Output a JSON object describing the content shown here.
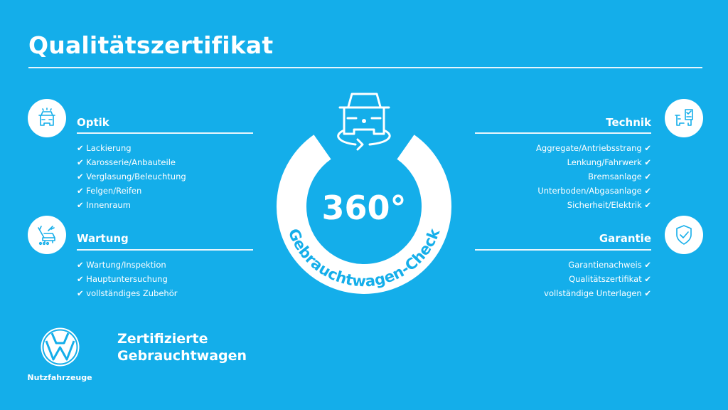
{
  "title": "Qualitätszertifikat",
  "colors": {
    "background": "#14aeea",
    "foreground": "#ffffff"
  },
  "check_mark": "✔",
  "sections": {
    "optik": {
      "title": "Optik",
      "icon": "car-front-lights-icon",
      "items": [
        "Lackierung",
        "Karosserie/Anbauteile",
        "Verglasung/Beleuchtung",
        "Felgen/Reifen",
        "Innenraum"
      ]
    },
    "wartung": {
      "title": "Wartung",
      "icon": "service-tools-icon",
      "items": [
        "Wartung/Inspektion",
        "Hauptuntersuchung",
        "vollständiges Zubehör"
      ]
    },
    "technik": {
      "title": "Technik",
      "icon": "car-checklist-icon",
      "items": [
        "Aggregate/Antriebsstrang",
        "Lenkung/Fahrwerk",
        "Bremsanlage",
        "Unterboden/Abgasanlage",
        "Sicherheit/Elektrik"
      ]
    },
    "garantie": {
      "title": "Garantie",
      "icon": "shield-check-icon",
      "items": [
        "Garantienachweis",
        "Qualitätszertifikat",
        "vollständige Unterlagen"
      ]
    }
  },
  "badge": {
    "degrees": "360°",
    "arc_text": "Gebrauchtwagen-Check",
    "icon": "car-rotate-icon"
  },
  "brand": {
    "line1": "Zertifizierte",
    "line2": "Gebrauchtwagen",
    "logo_caption": "Nutzfahrzeuge"
  }
}
